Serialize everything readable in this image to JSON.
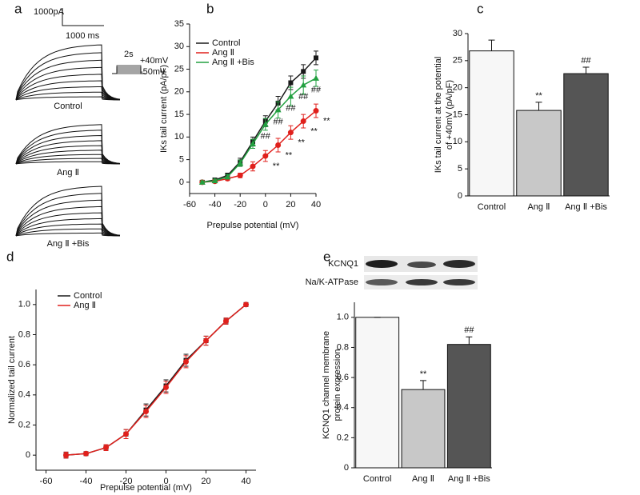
{
  "panel_a": {
    "label": "a",
    "scale_current": "1000pA",
    "scale_time": "1000 ms",
    "protocol_duration": "2s",
    "protocol_top": "+40mV",
    "protocol_bottom": "-50mV",
    "traces": [
      "Control",
      "Ang Ⅱ",
      "Ang Ⅱ +Bis"
    ]
  },
  "chart_data": [
    {
      "type": "line",
      "label": "b",
      "xlabel": "Prepulse potential (mV)",
      "ylabel": [
        "IKs tail current (pA/pF)"
      ],
      "x": [
        -50,
        -40,
        -30,
        -20,
        -10,
        0,
        10,
        20,
        30,
        40
      ],
      "xlim": [
        -60,
        40
      ],
      "xticks": [
        -60,
        -40,
        -20,
        0,
        20,
        40
      ],
      "ylim": [
        -2.5,
        35
      ],
      "yticks": [
        0,
        5,
        10,
        15,
        20,
        25,
        30,
        35
      ],
      "series": [
        {
          "name": "Control",
          "color": "#1a1a1a",
          "marker": "square",
          "values": [
            0,
            0.5,
            1.5,
            4.5,
            9,
            13.5,
            17.5,
            22,
            24.5,
            27.5
          ],
          "errors": [
            0.4,
            0.4,
            0.5,
            0.8,
            1,
            1.2,
            1.5,
            1.5,
            1.5,
            1.5
          ]
        },
        {
          "name": "Ang Ⅱ",
          "color": "#e0201c",
          "marker": "circle",
          "values": [
            0,
            0.2,
            0.8,
            1.5,
            3.5,
            5.8,
            8.2,
            11,
            13.5,
            15.8
          ],
          "errors": [
            0.3,
            0.3,
            0.4,
            0.5,
            1,
            1.2,
            1.5,
            1.5,
            1.5,
            1.5
          ],
          "significance": "**",
          "significance_at": [
            0,
            10,
            20,
            30,
            40
          ]
        },
        {
          "name": "Ang Ⅱ +Bis",
          "color": "#22a040",
          "marker": "triangle",
          "values": [
            0,
            0.3,
            1.2,
            4.2,
            8.5,
            12.8,
            16,
            19,
            21.5,
            23
          ],
          "errors": [
            0.3,
            0.4,
            0.5,
            0.7,
            1,
            1.3,
            1.8,
            2,
            2,
            1.8
          ],
          "significance": "##",
          "significance_at": [
            0,
            10,
            20,
            30,
            40
          ]
        }
      ]
    },
    {
      "type": "bar",
      "label": "c",
      "ylabel": [
        "IKs tail current at the potential",
        "of +40mV (pA/pF)"
      ],
      "categories": [
        "Control",
        "Ang Ⅱ",
        "Ang Ⅱ +Bis"
      ],
      "values": [
        26.8,
        15.8,
        22.6
      ],
      "errors": [
        2,
        1.5,
        1.2
      ],
      "colors": [
        "#f7f7f7",
        "#c8c8c8",
        "#555555"
      ],
      "significance": [
        null,
        "**",
        "##"
      ],
      "ylim": [
        0,
        30
      ],
      "yticks": [
        0,
        5,
        10,
        15,
        20,
        25,
        30
      ]
    },
    {
      "type": "line",
      "label": "d",
      "xlabel": "Prepulse potential (mV)",
      "ylabel": [
        "Normalized tail current"
      ],
      "x": [
        -50,
        -40,
        -30,
        -20,
        -10,
        0,
        10,
        20,
        30,
        40
      ],
      "xlim": [
        -65,
        45
      ],
      "xticks": [
        -60,
        -40,
        -20,
        0,
        20,
        40
      ],
      "ylim": [
        -0.1,
        1.1
      ],
      "yticks": [
        0,
        0.2,
        0.4,
        0.6,
        0.8,
        {
          "value": 1,
          "label": "1.0"
        }
      ],
      "series": [
        {
          "name": "Control",
          "color": "#1a1a1a",
          "marker": "square",
          "values": [
            0,
            0.01,
            0.05,
            0.14,
            0.3,
            0.46,
            0.63,
            0.76,
            0.89,
            1
          ],
          "errors": [
            0.02,
            0.01,
            0.02,
            0.03,
            0.04,
            0.04,
            0.04,
            0.03,
            0.02,
            0.01
          ]
        },
        {
          "name": "Ang Ⅱ",
          "color": "#e0201c",
          "marker": "circle",
          "values": [
            0,
            0.01,
            0.05,
            0.14,
            0.29,
            0.45,
            0.62,
            0.76,
            0.89,
            1
          ],
          "errors": [
            0.02,
            0.01,
            0.02,
            0.03,
            0.04,
            0.04,
            0.04,
            0.03,
            0.02,
            0.01
          ]
        }
      ]
    },
    {
      "type": "bar",
      "label": "e",
      "ylabel": [
        "KCNQ1 channel membrane",
        "protein expression"
      ],
      "blot_labels": [
        "KCNQ1",
        "Na/K-ATPase"
      ],
      "categories": [
        "Control",
        "Ang Ⅱ",
        "Ang Ⅱ +Bis"
      ],
      "values": [
        1,
        0.52,
        0.82
      ],
      "errors": [
        0,
        0.06,
        0.05
      ],
      "colors": [
        "#f7f7f7",
        "#c8c8c8",
        "#555555"
      ],
      "significance": [
        null,
        "**",
        "##"
      ],
      "ylim": [
        0,
        1.1
      ],
      "yticks": [
        0,
        0.2,
        0.4,
        0.6,
        0.8,
        {
          "value": 1,
          "label": "1.0"
        }
      ]
    }
  ]
}
